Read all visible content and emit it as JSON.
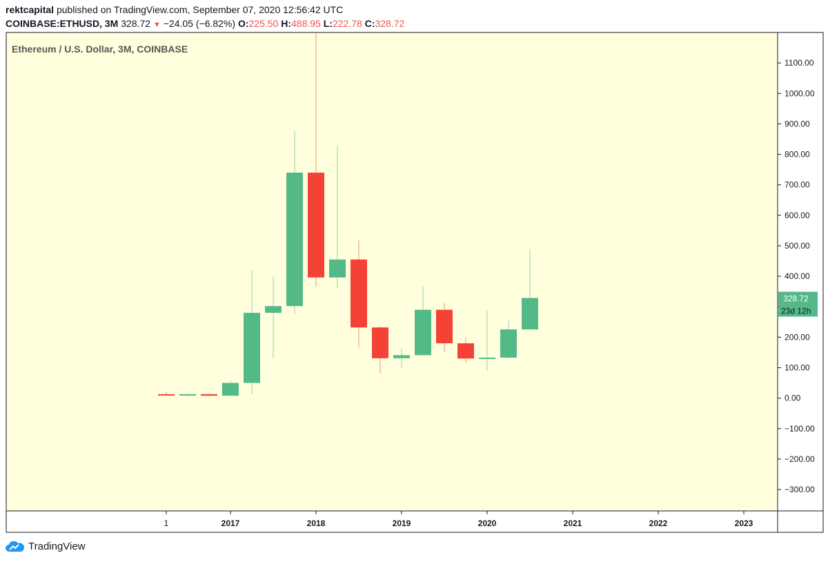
{
  "header": {
    "author": "rektcapital",
    "published_text": "published on TradingView.com, September 07, 2020 12:56:42 UTC",
    "symbol": "COINBASE:ETHUSD, 3M",
    "last": "328.72",
    "change": "−24.05 (−6.82%)",
    "o_label": "O:",
    "o_value": "225.50",
    "h_label": "H:",
    "h_value": "488.95",
    "l_label": "L:",
    "l_value": "222.78",
    "c_label": "C:",
    "c_value": "328.72"
  },
  "footer": {
    "brand": "TradingView"
  },
  "colors": {
    "background": "#ffffdd",
    "up": "#53b987",
    "down": "#f44336",
    "axis": "#131722"
  },
  "chart_data": {
    "type": "candlestick",
    "title": "Ethereum / U.S. Dollar, 3M, COINBASE",
    "ylim": [
      -370,
      1200
    ],
    "y_ticks": [
      -300,
      -200,
      -100,
      0,
      100,
      200,
      300,
      400,
      500,
      600,
      700,
      800,
      900,
      1000,
      1100
    ],
    "y_tick_labels": [
      "−300.00",
      "−200.00",
      "−100.00",
      "0.00",
      "100.00",
      "200.00",
      "300.00",
      "400.00",
      "500.00",
      "600.00",
      "700.00",
      "800.00",
      "900.00",
      "1000.00",
      "1100.00"
    ],
    "x_tick_labels": [
      {
        "label": "1",
        "x": "2016-04"
      },
      {
        "label": "2017",
        "x": "2017-01"
      },
      {
        "label": "2018",
        "x": "2018-01"
      },
      {
        "label": "2019",
        "x": "2019-01"
      },
      {
        "label": "2020",
        "x": "2020-01"
      },
      {
        "label": "2021",
        "x": "2021-01"
      },
      {
        "label": "2022",
        "x": "2022-01"
      },
      {
        "label": "2023",
        "x": "2023-01"
      }
    ],
    "candles": [
      {
        "x": "2016-04",
        "open": 13,
        "high": 21,
        "low": 8,
        "close": 12
      },
      {
        "x": "2016-07",
        "open": 12,
        "high": 15,
        "low": 7,
        "close": 13
      },
      {
        "x": "2016-10",
        "open": 13,
        "high": 14,
        "low": 7,
        "close": 8
      },
      {
        "x": "2017-01",
        "open": 8,
        "high": 57,
        "low": 8,
        "close": 50
      },
      {
        "x": "2017-04",
        "open": 50,
        "high": 420,
        "low": 13,
        "close": 280
      },
      {
        "x": "2017-07",
        "open": 280,
        "high": 400,
        "low": 130,
        "close": 302
      },
      {
        "x": "2017-10",
        "open": 302,
        "high": 877,
        "low": 276,
        "close": 740
      },
      {
        "x": "2018-01",
        "open": 740,
        "high": 1200,
        "low": 365,
        "close": 396
      },
      {
        "x": "2018-04",
        "open": 396,
        "high": 830,
        "low": 360,
        "close": 455
      },
      {
        "x": "2018-07",
        "open": 455,
        "high": 517,
        "low": 166,
        "close": 232
      },
      {
        "x": "2018-10",
        "open": 232,
        "high": 236,
        "low": 80,
        "close": 131
      },
      {
        "x": "2019-01",
        "open": 131,
        "high": 165,
        "low": 100,
        "close": 141
      },
      {
        "x": "2019-04",
        "open": 141,
        "high": 366,
        "low": 140,
        "close": 290
      },
      {
        "x": "2019-07",
        "open": 290,
        "high": 312,
        "low": 150,
        "close": 180
      },
      {
        "x": "2019-10",
        "open": 180,
        "high": 198,
        "low": 117,
        "close": 130
      },
      {
        "x": "2020-01",
        "open": 130,
        "high": 288,
        "low": 90,
        "close": 133
      },
      {
        "x": "2020-04",
        "open": 133,
        "high": 254,
        "low": 130,
        "close": 225.5
      },
      {
        "x": "2020-07",
        "open": 225.5,
        "high": 488.95,
        "low": 222.78,
        "close": 328.72
      }
    ],
    "last_price_label": "328.72",
    "countdown_label": "23d 12h",
    "grid": false,
    "legend": "none"
  }
}
